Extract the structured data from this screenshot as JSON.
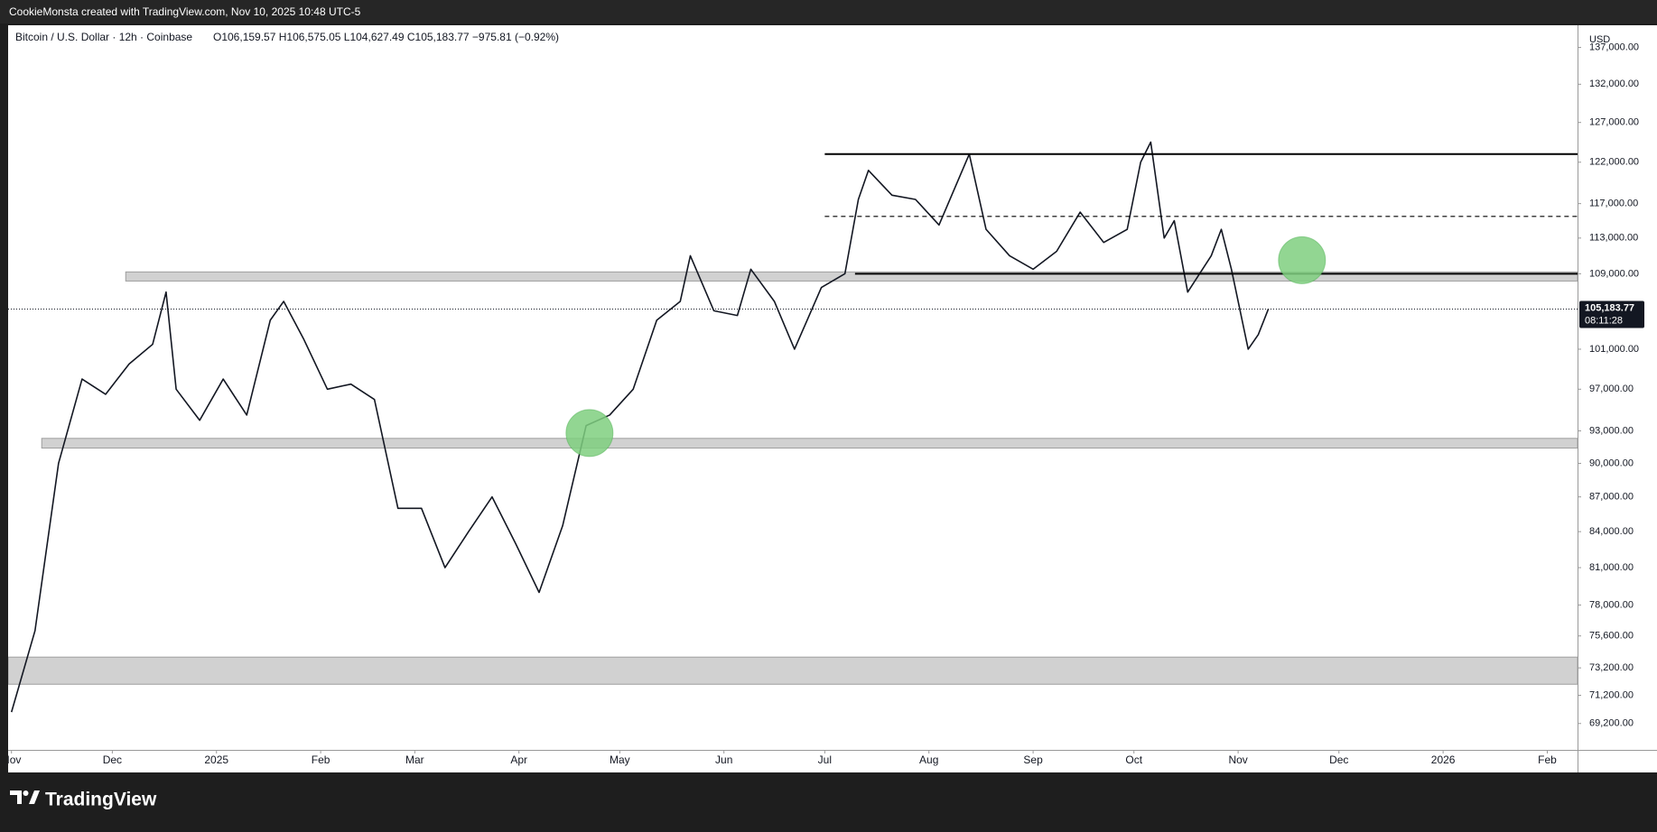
{
  "header": {
    "text": "CookieMonsta created with TradingView.com, Nov 10, 2025 10:48 UTC-5"
  },
  "footer": {
    "brand": "TradingView"
  },
  "chart_data": {
    "type": "line",
    "title": "Bitcoin / U.S. Dollar · 12h · Coinbase",
    "ohlc_text": "O106,159.57 H106,575.05 L104,627.49 C105,183.77 −975.81 (−0.92%)",
    "currency": "USD",
    "log_scale": true,
    "x": [
      "2024-11-01",
      "2024-11-08",
      "2024-11-15",
      "2024-11-22",
      "2024-11-29",
      "2024-12-06",
      "2024-12-13",
      "2024-12-17",
      "2024-12-20",
      "2024-12-27",
      "2025-01-03",
      "2025-01-10",
      "2025-01-17",
      "2025-01-21",
      "2025-01-27",
      "2025-02-03",
      "2025-02-10",
      "2025-02-17",
      "2025-02-24",
      "2025-03-03",
      "2025-03-10",
      "2025-03-17",
      "2025-03-24",
      "2025-03-31",
      "2025-04-07",
      "2025-04-14",
      "2025-04-21",
      "2025-04-28",
      "2025-05-05",
      "2025-05-12",
      "2025-05-19",
      "2025-05-22",
      "2025-05-29",
      "2025-06-05",
      "2025-06-09",
      "2025-06-16",
      "2025-06-22",
      "2025-06-30",
      "2025-07-07",
      "2025-07-11",
      "2025-07-14",
      "2025-07-21",
      "2025-07-28",
      "2025-08-04",
      "2025-08-13",
      "2025-08-18",
      "2025-08-25",
      "2025-09-01",
      "2025-09-08",
      "2025-09-15",
      "2025-09-22",
      "2025-09-29",
      "2025-10-03",
      "2025-10-06",
      "2025-10-10",
      "2025-10-13",
      "2025-10-17",
      "2025-10-24",
      "2025-10-27",
      "2025-10-30",
      "2025-11-04",
      "2025-11-07",
      "2025-11-10"
    ],
    "series": [
      {
        "color": "#131722",
        "values": [
          70000,
          76000,
          90000,
          98000,
          96500,
          99500,
          101500,
          107000,
          97000,
          94000,
          98000,
          94500,
          104000,
          106000,
          102000,
          97000,
          97500,
          96000,
          86000,
          86000,
          81000,
          84000,
          87000,
          83000,
          79000,
          84500,
          93500,
          94500,
          97000,
          104000,
          106000,
          111000,
          105000,
          104500,
          109500,
          106000,
          101000,
          107500,
          109000,
          117500,
          121000,
          118000,
          117500,
          114500,
          123000,
          114000,
          111000,
          109500,
          111500,
          116000,
          112500,
          114000,
          122000,
          124500,
          113000,
          115000,
          107000,
          111000,
          114000,
          109500,
          101000,
          102500,
          105183.77
        ]
      }
    ],
    "last_price": {
      "value": 105183.77,
      "label": "105,183.77"
    },
    "countdown": "08:11:28",
    "zones": [
      {
        "from": "2024-12-05",
        "low": 108200,
        "high": 109200
      },
      {
        "from": "2024-11-10",
        "low": 91400,
        "high": 92300
      },
      {
        "from": "2024-10-31",
        "low": 72000,
        "high": 74000
      }
    ],
    "lines": [
      {
        "from": "2025-07-01",
        "value": 123000,
        "style": "solid"
      },
      {
        "from": "2025-07-01",
        "value": 115500,
        "style": "dashed"
      },
      {
        "from": "2025-07-10",
        "value": 109000,
        "style": "solid"
      }
    ],
    "markers": [
      {
        "x": "2025-04-22",
        "value": 92800,
        "color": "#7fcf7f"
      },
      {
        "x": "2025-11-20",
        "value": 110500,
        "color": "#7fcf7f"
      }
    ],
    "xlim": [
      "2024-10-31",
      "2026-02-10"
    ],
    "xticks": [
      {
        "value": "2024-11-01",
        "label": "Nov"
      },
      {
        "value": "2024-12-01",
        "label": "Dec"
      },
      {
        "value": "2025-01-01",
        "label": "2025"
      },
      {
        "value": "2025-02-01",
        "label": "Feb"
      },
      {
        "value": "2025-03-01",
        "label": "Mar"
      },
      {
        "value": "2025-04-01",
        "label": "Apr"
      },
      {
        "value": "2025-05-01",
        "label": "May"
      },
      {
        "value": "2025-06-01",
        "label": "Jun"
      },
      {
        "value": "2025-07-01",
        "label": "Jul"
      },
      {
        "value": "2025-08-01",
        "label": "Aug"
      },
      {
        "value": "2025-09-01",
        "label": "Sep"
      },
      {
        "value": "2025-10-01",
        "label": "Oct"
      },
      {
        "value": "2025-11-01",
        "label": "Nov"
      },
      {
        "value": "2025-12-01",
        "label": "Dec"
      },
      {
        "value": "2026-01-01",
        "label": "2026"
      },
      {
        "value": "2026-02-01",
        "label": "Feb"
      }
    ],
    "ylim": [
      67380,
      140100
    ],
    "yticks": [
      {
        "value": 69200,
        "label": "69,200.00"
      },
      {
        "value": 71200,
        "label": "71,200.00"
      },
      {
        "value": 73200,
        "label": "73,200.00"
      },
      {
        "value": 75600,
        "label": "75,600.00"
      },
      {
        "value": 78000,
        "label": "78,000.00"
      },
      {
        "value": 81000,
        "label": "81,000.00"
      },
      {
        "value": 84000,
        "label": "84,000.00"
      },
      {
        "value": 87000,
        "label": "87,000.00"
      },
      {
        "value": 90000,
        "label": "90,000.00"
      },
      {
        "value": 93000,
        "label": "93,000.00"
      },
      {
        "value": 97000,
        "label": "97,000.00"
      },
      {
        "value": 101000,
        "label": "101,000.00"
      },
      {
        "value": 109000,
        "label": "109,000.00"
      },
      {
        "value": 113000,
        "label": "113,000.00"
      },
      {
        "value": 117000,
        "label": "117,000.00"
      },
      {
        "value": 122000,
        "label": "122,000.00"
      },
      {
        "value": 127000,
        "label": "127,000.00"
      },
      {
        "value": 132000,
        "label": "132,000.00"
      },
      {
        "value": 137000,
        "label": "137,000.00"
      }
    ]
  }
}
